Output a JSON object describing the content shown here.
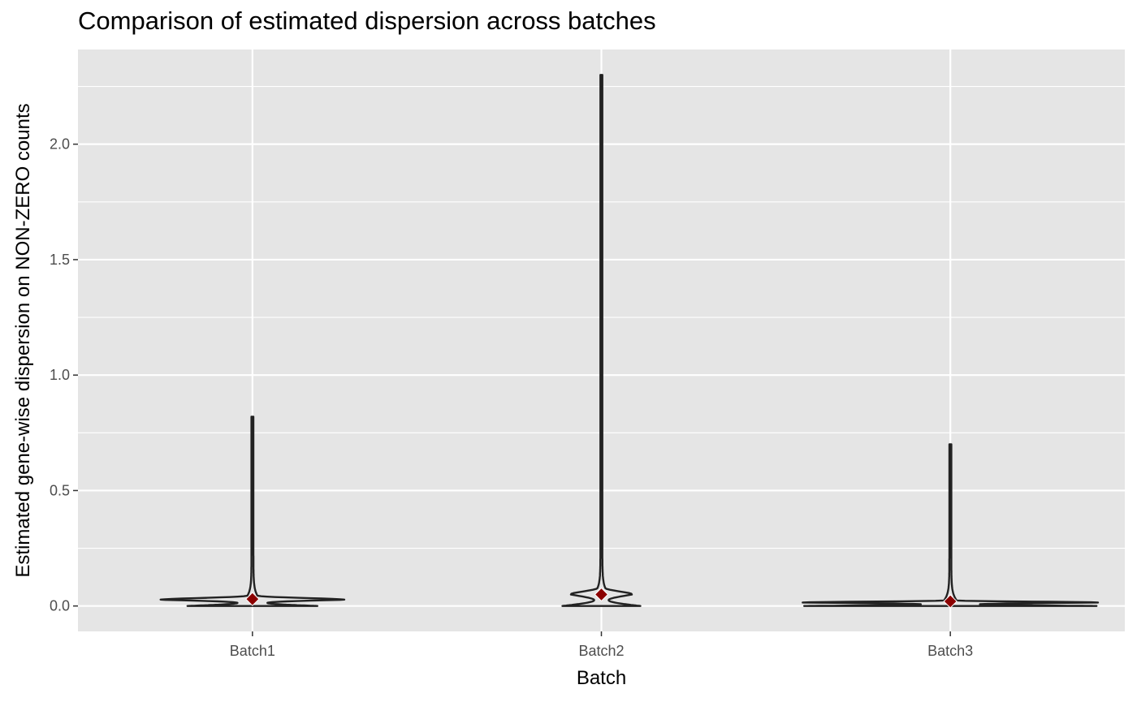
{
  "chart_data": {
    "type": "violin",
    "title": "Comparison of estimated dispersion across batches",
    "xlabel": "Batch",
    "ylabel": "Estimated gene-wise dispersion on NON-ZERO counts",
    "categories": [
      "Batch1",
      "Batch2",
      "Batch3"
    ],
    "ylim": [
      -0.11,
      2.41
    ],
    "y_ticks": [
      0.0,
      0.5,
      1.0,
      1.5,
      2.0
    ],
    "y_tick_labels": [
      "0.0",
      "0.5",
      "1.0",
      "1.5",
      "2.0"
    ],
    "grid": true,
    "violins": [
      {
        "category": "Batch1",
        "min": 0.0,
        "max": 0.82,
        "mode": 0.027,
        "mean": 0.03
      },
      {
        "category": "Batch2",
        "min": 0.0,
        "max": 2.3,
        "mode": 0.05,
        "mean": 0.05
      },
      {
        "category": "Batch3",
        "min": 0.0,
        "max": 0.7,
        "mode": 0.015,
        "mean": 0.02
      }
    ],
    "mean_marker_color": "#8b0000",
    "panel_color": "#e5e5e5",
    "grid_color": "#ffffff"
  }
}
